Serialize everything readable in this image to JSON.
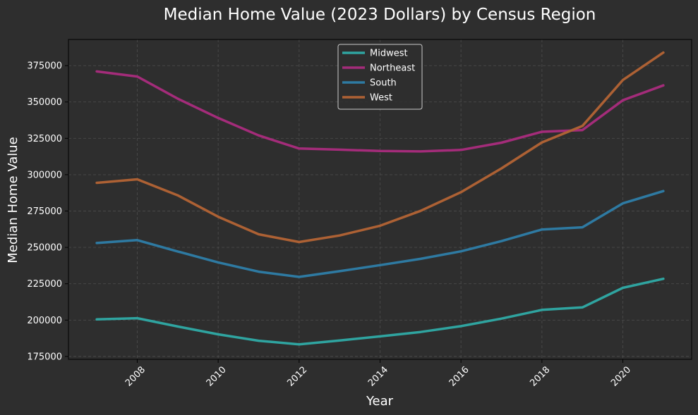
{
  "chart_data": {
    "type": "line",
    "title": "Median Home Value (2023 Dollars) by Census Region",
    "xlabel": "Year",
    "ylabel": "Median Home Value",
    "x": [
      2007,
      2008,
      2009,
      2010,
      2011,
      2012,
      2013,
      2014,
      2015,
      2016,
      2017,
      2018,
      2019,
      2020,
      2021
    ],
    "xlim": [
      2006.3,
      2021.7
    ],
    "ylim": [
      173000,
      393000
    ],
    "xticks": [
      2008,
      2010,
      2012,
      2014,
      2016,
      2018,
      2020
    ],
    "xtick_labels": [
      "2008",
      "2010",
      "2012",
      "2014",
      "2016",
      "2018",
      "2020"
    ],
    "yticks": [
      175000,
      200000,
      225000,
      250000,
      275000,
      300000,
      325000,
      350000,
      375000
    ],
    "ytick_labels": [
      "175000",
      "200000",
      "225000",
      "250000",
      "275000",
      "300000",
      "325000",
      "350000",
      "375000"
    ],
    "grid": true,
    "legend_position": "top-center",
    "series": [
      {
        "name": "Midwest",
        "color": "#2fa4a0",
        "values": [
          200500,
          201300,
          195600,
          190200,
          185800,
          183300,
          186000,
          188800,
          191800,
          195800,
          201000,
          207000,
          208700,
          222200,
          228400
        ]
      },
      {
        "name": "Northeast",
        "color": "#a42c7a",
        "values": [
          371000,
          367500,
          352300,
          339000,
          327000,
          318000,
          317200,
          316300,
          316000,
          317000,
          322000,
          329500,
          330700,
          351200,
          361400
        ]
      },
      {
        "name": "South",
        "color": "#2e7aa2",
        "values": [
          253000,
          255000,
          247200,
          239700,
          233300,
          229700,
          233600,
          237800,
          242100,
          247300,
          254300,
          262300,
          263800,
          280300,
          288700
        ]
      },
      {
        "name": "West",
        "color": "#ad6134",
        "values": [
          294400,
          296800,
          285800,
          271100,
          259000,
          253700,
          258200,
          264900,
          275100,
          288000,
          304300,
          322200,
          333500,
          365100,
          384000
        ]
      }
    ]
  }
}
